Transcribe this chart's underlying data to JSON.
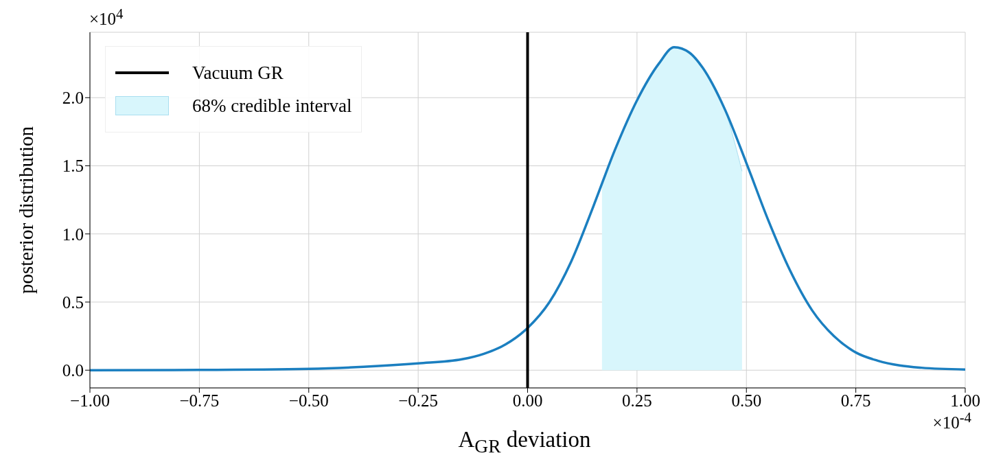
{
  "chart_data": {
    "type": "line",
    "xlabel": "A$_{GR}$ deviation",
    "ylabel": "posterior distribution",
    "annotations": [
      "×10$^{4}$",
      "×10$^{-4}$"
    ],
    "series": [
      {
        "color": "#1b7fc0",
        "x": [
          -1.0,
          -0.75,
          -0.5,
          -0.375,
          -0.25,
          -0.15,
          -0.1,
          -0.05,
          0,
          0.05,
          0.1,
          0.15,
          0.2,
          0.25,
          0.3,
          0.335,
          0.37,
          0.4,
          0.45,
          0.5,
          0.55,
          0.6,
          0.65,
          0.7,
          0.75,
          0.8,
          0.85,
          0.9,
          1.0
        ],
        "values": [
          0,
          0.002,
          0.01,
          0.025,
          0.05,
          0.08,
          0.12,
          0.19,
          0.31,
          0.5,
          0.8,
          1.2,
          1.62,
          1.98,
          2.25,
          2.37,
          2.33,
          2.22,
          1.92,
          1.52,
          1.1,
          0.73,
          0.44,
          0.25,
          0.13,
          0.07,
          0.035,
          0.018,
          0.005
        ]
      },
      {
        "type": "area",
        "name": "68% credible interval",
        "color": "#d8f6fc",
        "x": [
          0.17,
          0.2,
          0.25,
          0.3,
          0.335,
          0.37,
          0.4,
          0.45,
          0.49
        ],
        "values": [
          1.38,
          1.62,
          1.98,
          2.25,
          2.37,
          2.33,
          2.22,
          1.92,
          1.46
        ]
      }
    ],
    "ref_lines": [
      {
        "axis": "x",
        "value": 0,
        "label": "Vacuum GR",
        "color": "#000000"
      }
    ],
    "xlim": [
      -1,
      1
    ],
    "xticks": [
      {
        "value": -1,
        "label": "−1.00"
      },
      {
        "value": -0.75,
        "label": "−0.75"
      },
      {
        "value": -0.5,
        "label": "−0.50"
      },
      {
        "value": -0.25,
        "label": "−0.25"
      },
      {
        "value": 0,
        "label": "0.00"
      },
      {
        "value": 0.25,
        "label": "0.25"
      },
      {
        "value": 0.5,
        "label": "0.50"
      },
      {
        "value": 0.75,
        "label": "0.75"
      },
      {
        "value": 1,
        "label": "1.00"
      }
    ],
    "ylim": [
      -0.13,
      2.48
    ],
    "yticks": [
      {
        "value": 0,
        "label": "0.0"
      },
      {
        "value": 0.5,
        "label": "0.5"
      },
      {
        "value": 1,
        "label": "1.0"
      },
      {
        "value": 1.5,
        "label": "1.5"
      },
      {
        "value": 2,
        "label": "2.0"
      }
    ],
    "grid": true,
    "legend": "top left"
  }
}
